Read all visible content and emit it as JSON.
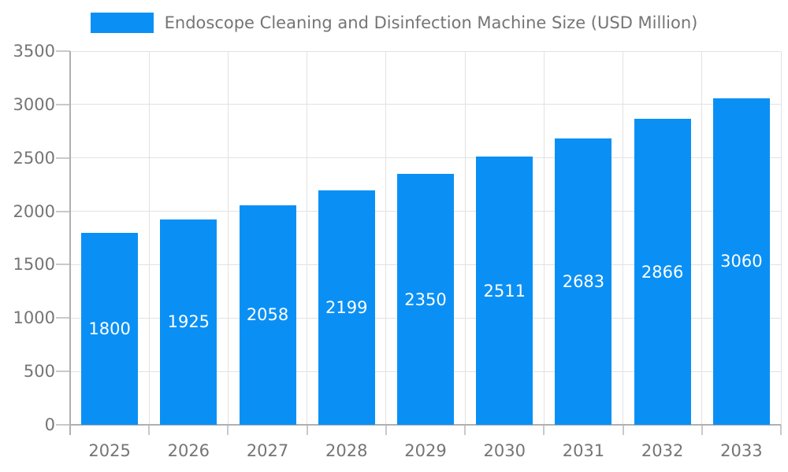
{
  "chart_data": {
    "type": "bar",
    "title": "Endoscope Cleaning and Disinfection Machine Size (USD Million)",
    "legend_position": "top",
    "categories": [
      "2025",
      "2026",
      "2027",
      "2028",
      "2029",
      "2030",
      "2031",
      "2032",
      "2033"
    ],
    "series": [
      {
        "name": "Endoscope Cleaning and Disinfection Machine Size (USD Million)",
        "values": [
          1800,
          1925,
          2058,
          2199,
          2350,
          2511,
          2683,
          2866,
          3060
        ]
      }
    ],
    "xlabel": "",
    "ylabel": "",
    "ylim": [
      0,
      3500
    ],
    "ytick_step": 500,
    "yticks": [
      0,
      500,
      1000,
      1500,
      2000,
      2500,
      3000,
      3500
    ],
    "grid": true,
    "value_labels": "inside-center",
    "colors": {
      "bar": "#0a90f5",
      "value_label": "#ffffff",
      "axis_line": "#b0b0b0",
      "grid_line": "#e2e2e2",
      "tick_line": "#c9c9c9",
      "tick_label": "#757575",
      "title": "#757575",
      "background": "#ffffff"
    }
  }
}
